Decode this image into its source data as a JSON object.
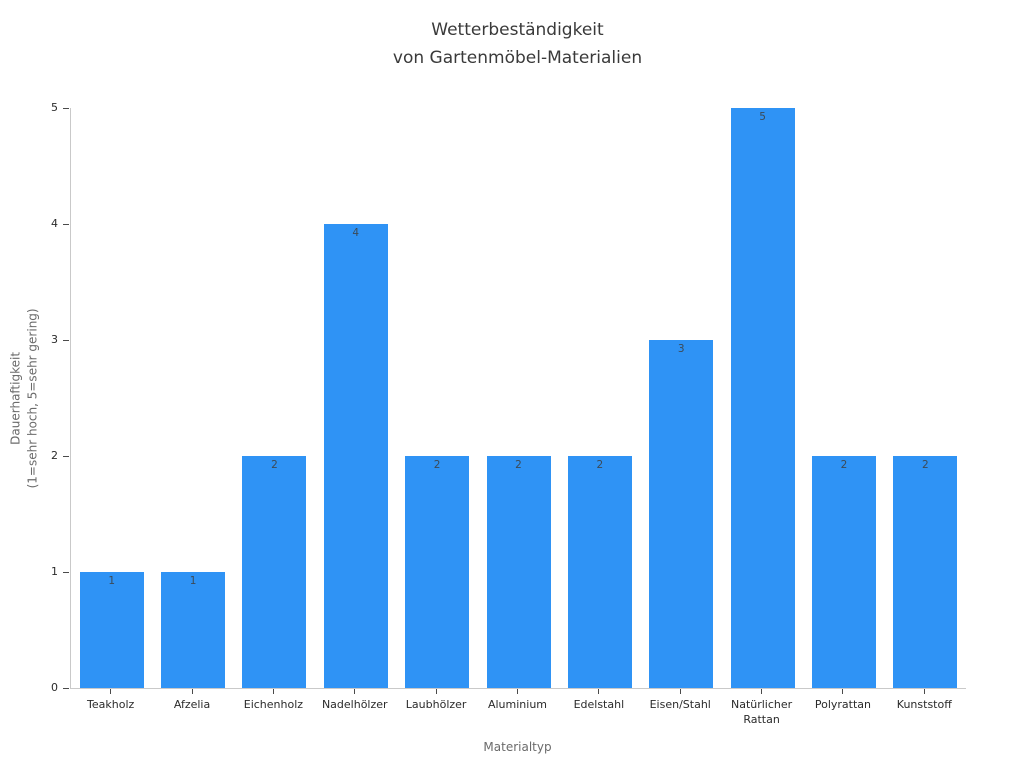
{
  "chart_data": {
    "type": "bar",
    "title": "Wetterbeständigkeit\nvon Gartenmöbel-Materialien",
    "xlabel": "Materialtyp",
    "ylabel": "Dauerhaftigkeit\n(1=sehr hoch, 5=sehr gering)",
    "categories": [
      "Teakholz",
      "Afzelia",
      "Eichenholz",
      "Nadelhölzer",
      "Laubhölzer",
      "Aluminium",
      "Edelstahl",
      "Eisen/Stahl",
      "Natürlicher\nRattan",
      "Polyrattan",
      "Kunststoff"
    ],
    "values": [
      1,
      1,
      2,
      4,
      2,
      2,
      2,
      3,
      5,
      2,
      2
    ],
    "ylim": [
      0,
      5
    ],
    "yticks": [
      0,
      1,
      2,
      3,
      4,
      5
    ],
    "grid": false,
    "legend_position": "none",
    "bar_color": "#2f93f5",
    "value_label_color": "#3c4a57"
  }
}
